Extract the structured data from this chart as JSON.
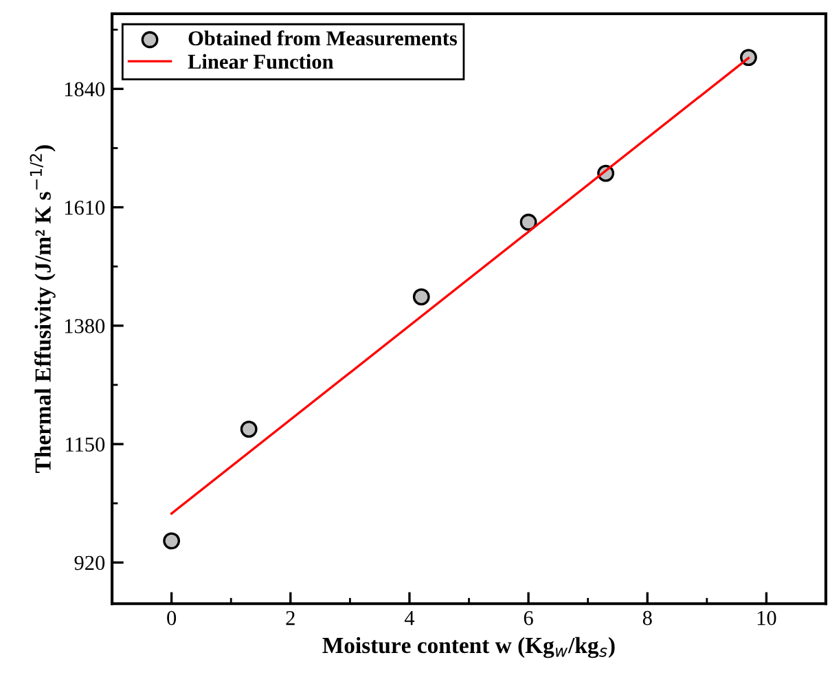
{
  "chart_data": {
    "type": "scatter",
    "xlabel": "Moisture content w (Kg$_{w}$/kg$_{s}$)",
    "ylabel": "Thermal Effusivity (J/m² K s$^{−1/2}$)",
    "series": [
      {
        "name": "Obtained from Measurements",
        "color": "#c0c0c0",
        "marker": "circle",
        "x": [
          0,
          1.3,
          4.2,
          6.0,
          7.3,
          9.7
        ],
        "values": [
          962,
          1179,
          1436,
          1581,
          1676,
          1901
        ]
      },
      {
        "name": "Linear Function",
        "type": "line",
        "color": "#ff0000",
        "marker": "none",
        "line_style": "solid",
        "x": [
          0,
          9.7
        ],
        "values": [
          1015,
          1900
        ]
      }
    ],
    "xlim": [
      -1,
      11
    ],
    "ylim": [
      840,
      1986
    ],
    "xticks": [
      0,
      2,
      4,
      6,
      8,
      10
    ],
    "yticks": [
      920,
      1150,
      1380,
      1610,
      1840
    ],
    "grid": false,
    "legend": "top left"
  }
}
